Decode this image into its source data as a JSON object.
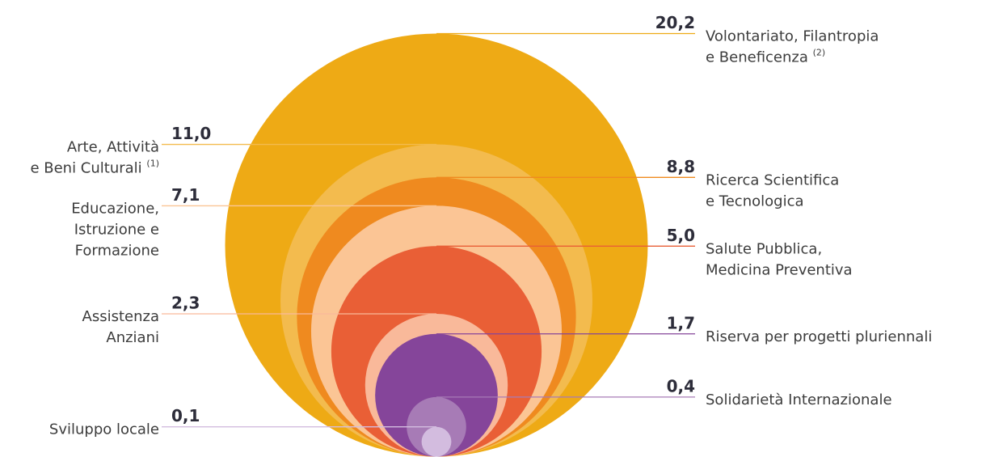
{
  "chart_data": {
    "type": "nested-bubble",
    "categories": [
      [
        "Volontariato, Filantropia",
        "e Beneficenza"
      ],
      [
        "Arte, Attività",
        "e Beni Culturali"
      ],
      [
        "Ricerca Scientifica",
        "e Tecnologica"
      ],
      [
        "Educazione,",
        "Istruzione e",
        "Formazione"
      ],
      [
        "Salute Pubblica,",
        "Medicina Preventiva"
      ],
      [
        "Assistenza",
        "Anziani"
      ],
      [
        "Riserva per progetti pluriennali"
      ],
      [
        "Solidarietà Internazionale"
      ],
      [
        "Sviluppo locale"
      ]
    ],
    "notes": [
      "(2)",
      "(1)",
      null,
      null,
      null,
      null,
      null,
      null,
      null
    ],
    "values": [
      20.2,
      11.0,
      8.8,
      7.1,
      5.0,
      2.3,
      1.7,
      0.4,
      0.1
    ],
    "value_labels": [
      "20,2",
      "11,0",
      "8,8",
      "7,1",
      "5,0",
      "2,3",
      "1,7",
      "0,4",
      "0,1"
    ],
    "colors": [
      "#eeaa15",
      "#f3bb4e",
      "#ef8a1f",
      "#fbc595",
      "#e95f36",
      "#f9b99a",
      "#85459a",
      "#a77bb6",
      "#d3bcdf"
    ],
    "label_side": [
      "right",
      "left",
      "right",
      "left",
      "right",
      "left",
      "right",
      "right",
      "left"
    ]
  }
}
